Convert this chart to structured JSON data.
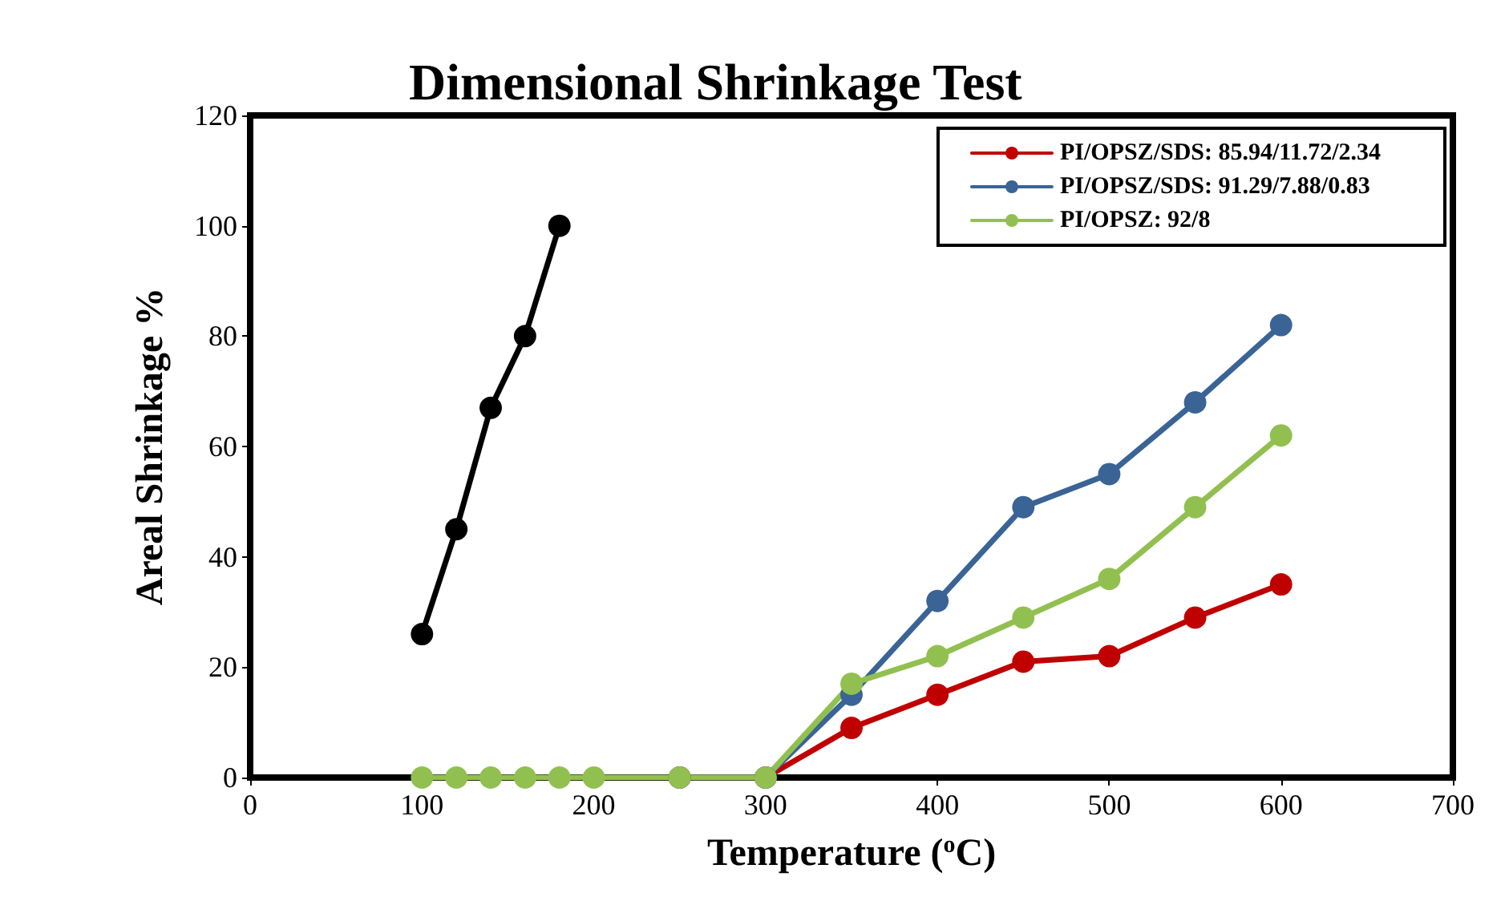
{
  "chart_data": {
    "type": "line",
    "title": "Dimensional Shrinkage Test",
    "xlabel": "Temperature ($^{o}$C)",
    "ylabel": "Areal Shrinkage %",
    "xlim": [
      0,
      700
    ],
    "xticks": [
      0,
      100,
      200,
      300,
      400,
      500,
      600,
      700
    ],
    "ylim": [
      0,
      120
    ],
    "yticks": [
      0,
      20,
      40,
      60,
      80,
      100,
      120
    ],
    "grid": false,
    "legend": "top right",
    "marker": "circle",
    "line_style": "solid",
    "series": [
      {
        "color": "#000000",
        "x": [
          100,
          120,
          140,
          160,
          180
        ],
        "values": [
          26,
          45,
          67,
          80,
          100
        ]
      },
      {
        "name": "PI/OPSZ/SDS: 85.94/11.72/2.34",
        "color": "#c00000",
        "x": [
          250,
          300,
          350,
          400,
          450,
          500,
          550,
          600
        ],
        "values": [
          0,
          0,
          9,
          15,
          21,
          22,
          29,
          35
        ]
      },
      {
        "name": "PI/OPSZ/SDS: 91.29/7.88/0.83",
        "color": "#3a6496",
        "x": [
          250,
          300,
          350,
          400,
          450,
          500,
          550,
          600
        ],
        "values": [
          0,
          0,
          15,
          32,
          49,
          55,
          68,
          82
        ]
      },
      {
        "name": "PI/OPSZ: 92/8",
        "color": "#92c050",
        "x": [
          100,
          120,
          140,
          160,
          180,
          200,
          250,
          300,
          350,
          400,
          450,
          500,
          550,
          600
        ],
        "values": [
          0,
          0,
          0,
          0,
          0,
          0,
          0,
          0,
          17,
          22,
          29,
          36,
          49,
          62
        ]
      }
    ]
  }
}
